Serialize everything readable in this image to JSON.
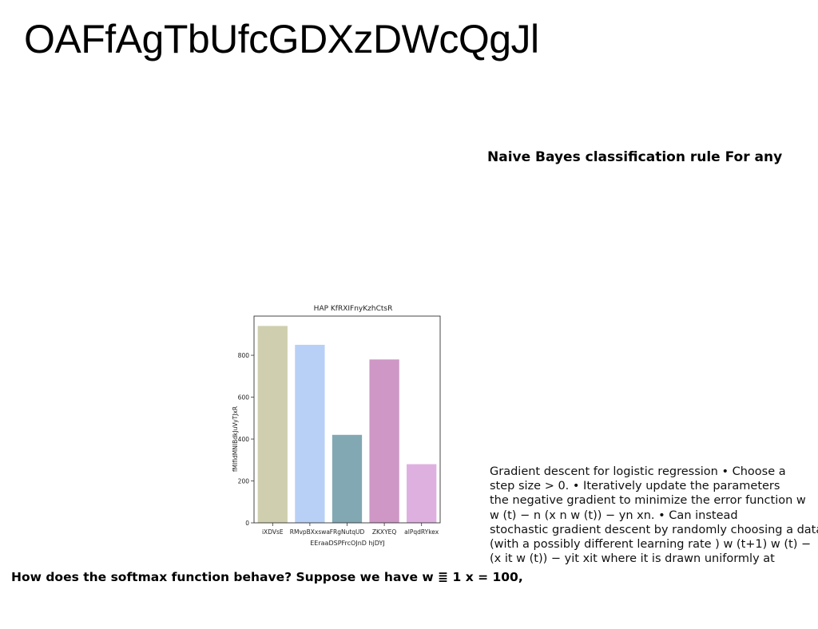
{
  "page": {
    "title": "OAFfAgTbUfcGDXzDWcQgJl",
    "right_heading": "Naive Bayes classification rule For any",
    "right_paragraph_lines": [
      "Gradient descent for logistic regression • Choose a",
      "step size  > 0. • Iteratively update the parameters",
      "the negative gradient to minimize the error function w",
      " w (t) −   n  (x n w (t)) − yn  xn. • Can instead",
      "stochastic gradient descent by randomly choosing a data",
      "(with a possibly different learning rate ) w (t+1)  w (t) − ",
      "(x it w (t)) − yit  xit where it is drawn uniformly at"
    ],
    "bottom_heading": "How does the softmax function behave? Suppose we have w ≣ 1 x = 100,"
  },
  "chart_data": {
    "type": "bar",
    "title": "HAP KfRXIFnyKzhCtsR",
    "xlabel": "EEraaDSPFrcOJnD hjDYJ",
    "ylabel": "fMIfIdMNIBdkJuVyTJxR",
    "categories": [
      "iXDVsE",
      "RMvpBXxswa",
      "FRgNutqUD",
      "ZKXYEQ",
      "alPqdRYkex"
    ],
    "values": [
      940,
      850,
      420,
      780,
      280
    ],
    "colors": [
      "#cfcfaf",
      "#b9d0f6",
      "#82a8b3",
      "#ce97c5",
      "#deb0e0"
    ],
    "ylim": [
      0,
      987
    ],
    "yticks": [
      0,
      200,
      400,
      600,
      800
    ],
    "grid": false
  }
}
